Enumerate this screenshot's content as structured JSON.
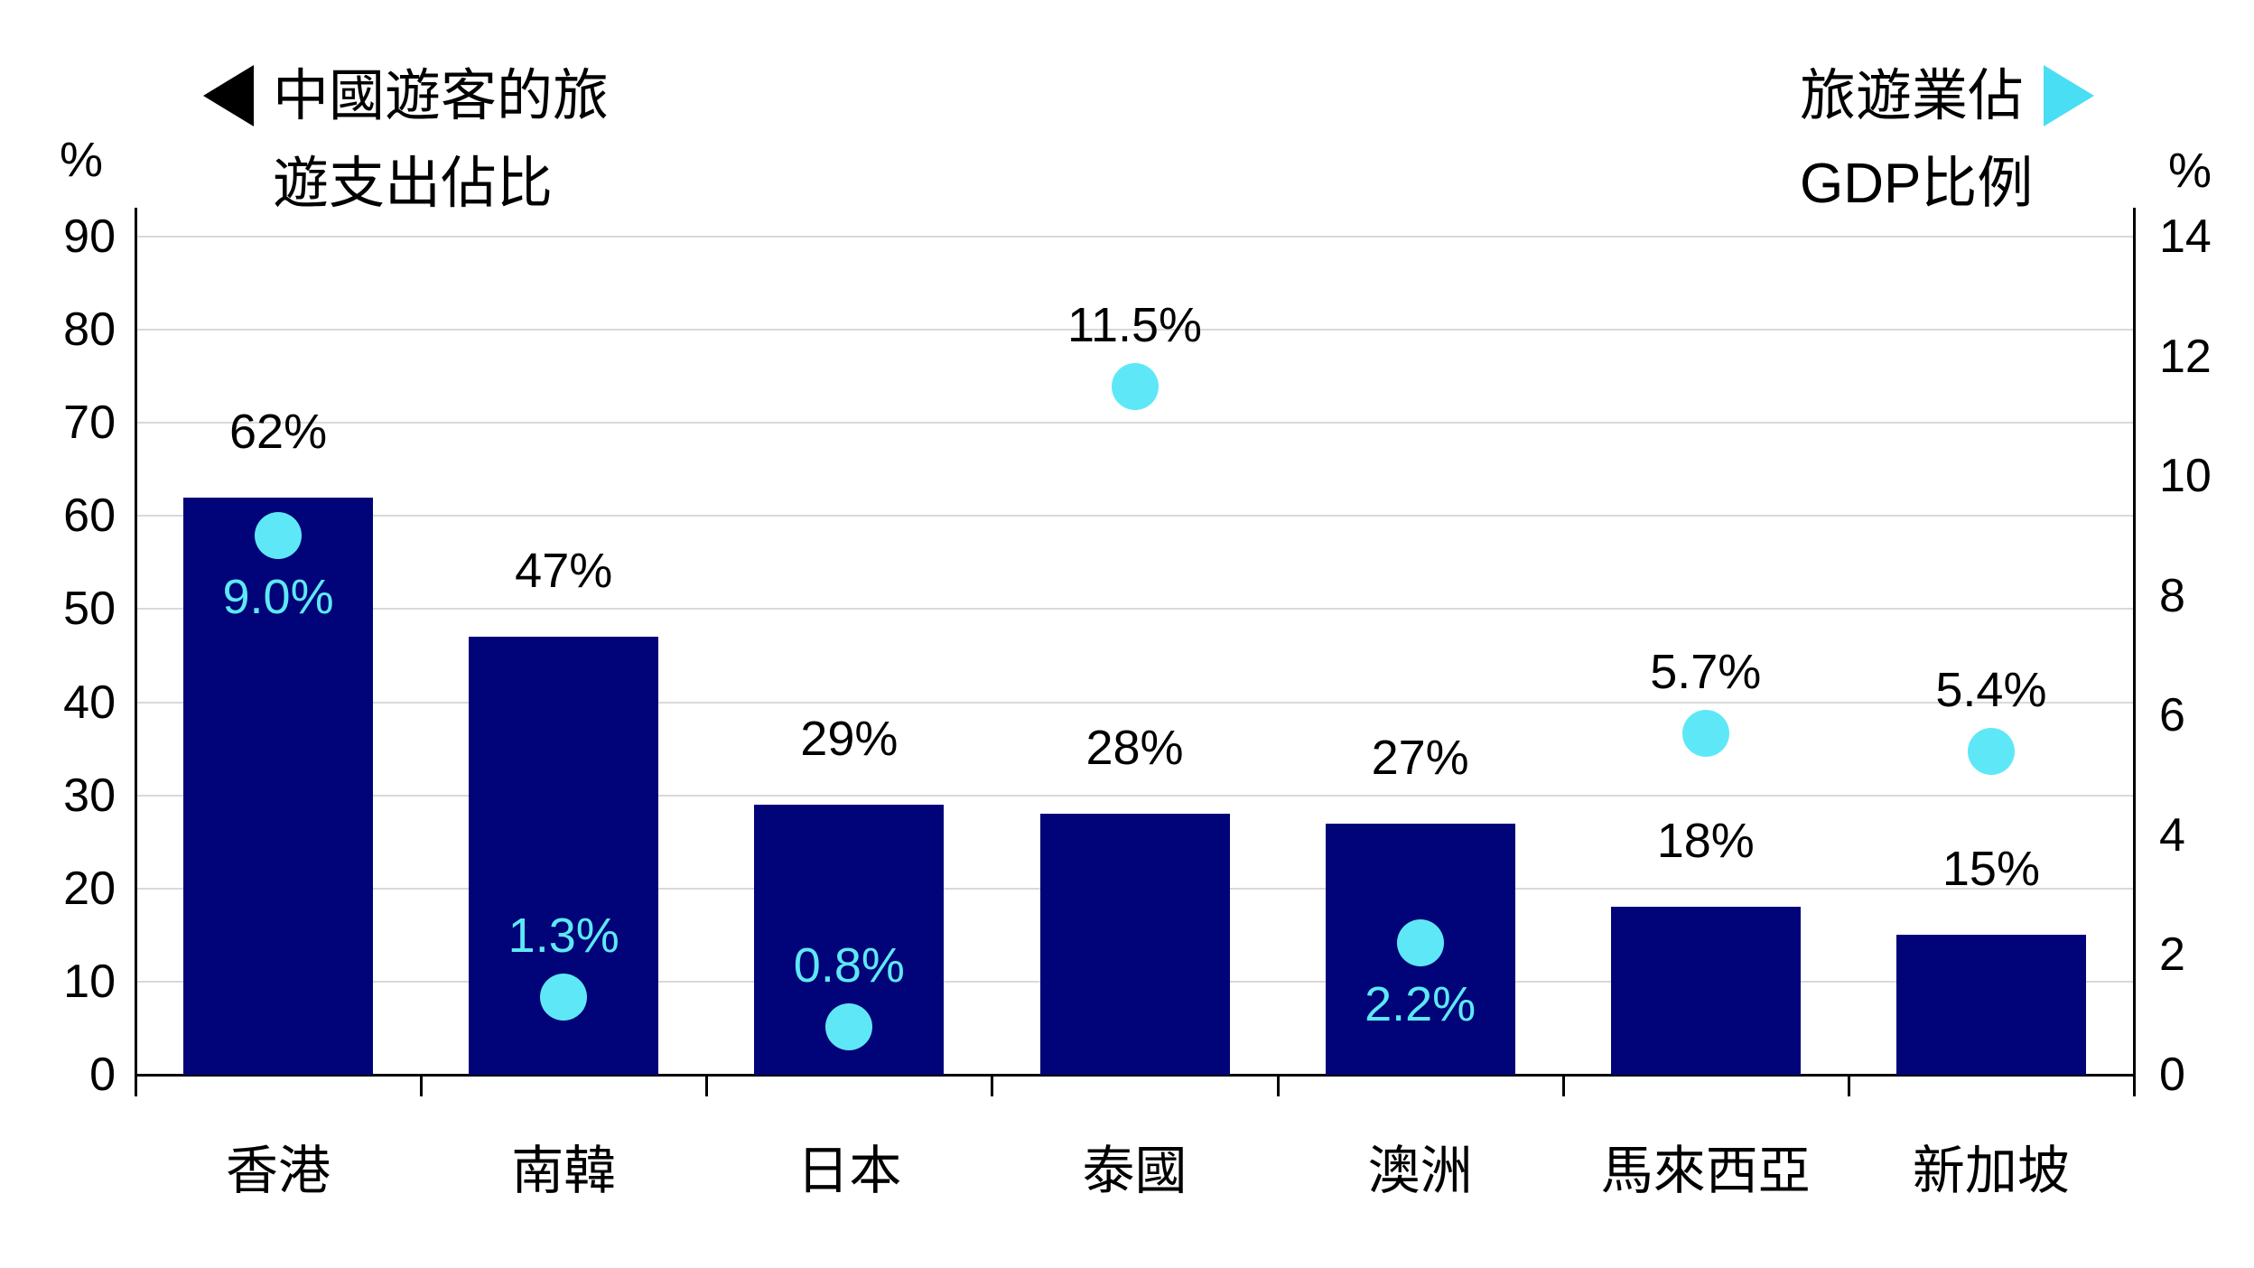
{
  "page": {
    "background": "#FFFFFF"
  },
  "chart_data": {
    "type": "bar+scatter",
    "legend_left": {
      "arrow": "left",
      "arrow_color": "#000000",
      "line1": "中國遊客的旅",
      "line2": "遊支出佔比"
    },
    "legend_right": {
      "arrow": "right",
      "arrow_color": "#4ADEF4",
      "line1": "旅遊業佔",
      "line2": "GDP比例"
    },
    "axes": {
      "left": {
        "unit": "%",
        "min": 0,
        "max": 90,
        "ticks": [
          0,
          10,
          20,
          30,
          40,
          50,
          60,
          70,
          80,
          90
        ]
      },
      "right": {
        "unit": "%",
        "min": 0,
        "max": 14,
        "ticks": [
          0,
          2,
          4,
          6,
          8,
          10,
          12,
          14
        ]
      }
    },
    "categories": [
      "香港",
      "南韓",
      "日本",
      "泰國",
      "澳洲",
      "馬來西亞",
      "新加坡"
    ],
    "series": [
      {
        "name": "中國遊客的旅遊支出佔比",
        "type": "bar",
        "axis": "left",
        "color": "#010478",
        "values": [
          62,
          47,
          29,
          28,
          27,
          18,
          15
        ],
        "labels": [
          "62%",
          "47%",
          "29%",
          "28%",
          "27%",
          "18%",
          "15%"
        ],
        "label_color": "#000000"
      },
      {
        "name": "旅遊業佔GDP比例",
        "type": "scatter",
        "axis": "right",
        "color": "#5EE8F7",
        "values": [
          9.0,
          1.3,
          0.8,
          11.5,
          2.2,
          5.7,
          5.4
        ],
        "labels": [
          "9.0%",
          "1.3%",
          "0.8%",
          "11.5%",
          "2.2%",
          "5.7%",
          "5.4%"
        ],
        "label_positions": [
          "below",
          "above",
          "above",
          "above",
          "below",
          "above",
          "above"
        ],
        "label_colors": [
          "#5EE8F7",
          "#5EE8F7",
          "#5EE8F7",
          "#000000",
          "#5EE8F7",
          "#000000",
          "#000000"
        ]
      }
    ],
    "grid_color": "#D9D9D9",
    "axis_color": "#000000"
  }
}
